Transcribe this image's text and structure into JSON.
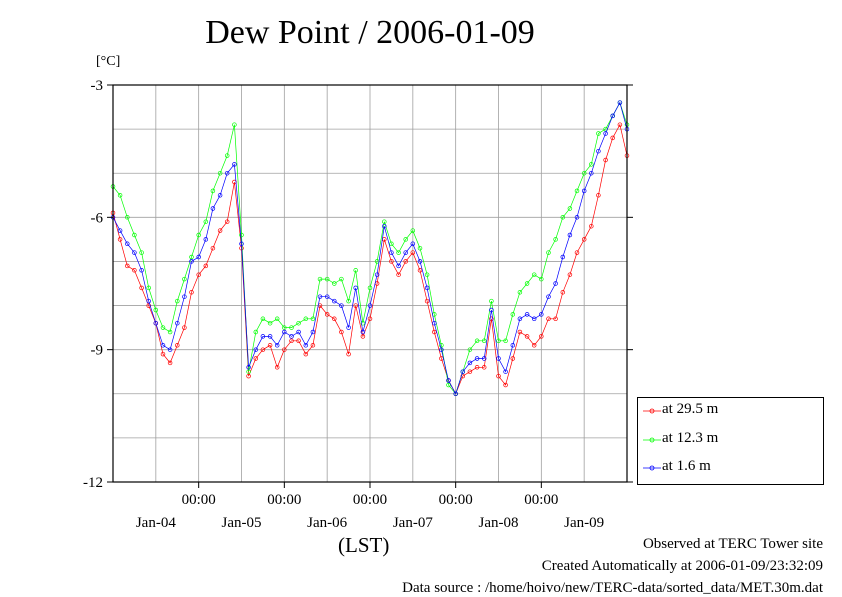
{
  "chart_data": {
    "type": "line",
    "title": "Dew Point / 2006-01-09",
    "ylabel": "[°C]",
    "xlabel": "(LST)",
    "ylim": [
      -12,
      -3
    ],
    "yticks": [
      -3,
      -6,
      -9,
      -12
    ],
    "y_minor_grid": [
      -4,
      -5,
      -7,
      -8,
      -10,
      -11
    ],
    "xlim": [
      0,
      72
    ],
    "xticks": [
      {
        "x": 12,
        "top": "00:00",
        "bottom": "Jan-04"
      },
      {
        "x": 24,
        "top": "00:00",
        "bottom": "Jan-05"
      },
      {
        "x": 36,
        "top": "00:00",
        "bottom": "Jan-06"
      },
      {
        "x": 48,
        "top": "00:00",
        "bottom": "Jan-07"
      },
      {
        "x": 60,
        "top": "00:00",
        "bottom": "Jan-08"
      },
      {
        "x": 72,
        "top": "",
        "bottom": "Jan-09"
      }
    ],
    "x_minor_grid": [
      0,
      6,
      18,
      30,
      42,
      54,
      66
    ],
    "grid": true,
    "legend": "bottom-right",
    "series": [
      {
        "name": "at 29.5 m",
        "color": "#ff0000",
        "values": [
          [
            0.0,
            -5.9
          ],
          [
            1.0,
            -6.5
          ],
          [
            2.0,
            -7.1
          ],
          [
            3.0,
            -7.2
          ],
          [
            4.0,
            -7.6
          ],
          [
            5.0,
            -8.0
          ],
          [
            6.0,
            -8.4
          ],
          [
            7.0,
            -9.1
          ],
          [
            8.0,
            -9.3
          ],
          [
            9.0,
            -8.9
          ],
          [
            10.0,
            -8.5
          ],
          [
            11.0,
            -7.7
          ],
          [
            12.0,
            -7.3
          ],
          [
            13.0,
            -7.1
          ],
          [
            14.0,
            -6.7
          ],
          [
            15.0,
            -6.3
          ],
          [
            16.0,
            -6.1
          ],
          [
            17.0,
            -5.2
          ],
          [
            18.0,
            -6.7
          ],
          [
            19.0,
            -9.6
          ],
          [
            20.0,
            -9.2
          ],
          [
            21.0,
            -9.0
          ],
          [
            22.0,
            -8.9
          ],
          [
            23.0,
            -9.4
          ],
          [
            24.0,
            -9.0
          ],
          [
            25.0,
            -8.8
          ],
          [
            26.0,
            -8.8
          ],
          [
            27.0,
            -9.1
          ],
          [
            28.0,
            -8.9
          ],
          [
            29.0,
            -8.0
          ],
          [
            30.0,
            -8.2
          ],
          [
            31.0,
            -8.3
          ],
          [
            32.0,
            -8.6
          ],
          [
            33.0,
            -9.1
          ],
          [
            34.0,
            -8.0
          ],
          [
            35.0,
            -8.7
          ],
          [
            36.0,
            -8.3
          ],
          [
            37.0,
            -7.5
          ],
          [
            38.0,
            -6.5
          ],
          [
            39.0,
            -7.0
          ],
          [
            40.0,
            -7.3
          ],
          [
            41.0,
            -7.0
          ],
          [
            42.0,
            -6.8
          ],
          [
            43.0,
            -7.2
          ],
          [
            44.0,
            -7.9
          ],
          [
            45.0,
            -8.6
          ],
          [
            46.0,
            -9.2
          ],
          [
            47.0,
            -9.7
          ],
          [
            48.0,
            -10.0
          ],
          [
            49.0,
            -9.6
          ],
          [
            50.0,
            -9.5
          ],
          [
            51.0,
            -9.4
          ],
          [
            52.0,
            -9.4
          ],
          [
            53.0,
            -8.3
          ],
          [
            54.0,
            -9.6
          ],
          [
            55.0,
            -9.8
          ],
          [
            56.0,
            -9.2
          ],
          [
            57.0,
            -8.6
          ],
          [
            58.0,
            -8.7
          ],
          [
            59.0,
            -8.9
          ],
          [
            60.0,
            -8.7
          ],
          [
            61.0,
            -8.3
          ],
          [
            62.0,
            -8.3
          ],
          [
            63.0,
            -7.7
          ],
          [
            64.0,
            -7.3
          ],
          [
            65.0,
            -6.8
          ],
          [
            66.0,
            -6.5
          ],
          [
            67.0,
            -6.2
          ],
          [
            68.0,
            -5.5
          ],
          [
            69.0,
            -4.7
          ],
          [
            70.0,
            -4.2
          ],
          [
            71.0,
            -3.9
          ],
          [
            72.0,
            -4.6
          ]
        ]
      },
      {
        "name": "at 12.3 m",
        "color": "#00ff00",
        "values": [
          [
            0.0,
            -5.3
          ],
          [
            1.0,
            -5.5
          ],
          [
            2.0,
            -6.0
          ],
          [
            3.0,
            -6.4
          ],
          [
            4.0,
            -6.8
          ],
          [
            5.0,
            -7.6
          ],
          [
            6.0,
            -8.1
          ],
          [
            7.0,
            -8.5
          ],
          [
            8.0,
            -8.6
          ],
          [
            9.0,
            -7.9
          ],
          [
            10.0,
            -7.4
          ],
          [
            11.0,
            -6.9
          ],
          [
            12.0,
            -6.4
          ],
          [
            13.0,
            -6.1
          ],
          [
            14.0,
            -5.4
          ],
          [
            15.0,
            -5.0
          ],
          [
            16.0,
            -4.6
          ],
          [
            17.0,
            -3.9
          ],
          [
            18.0,
            -6.4
          ],
          [
            19.0,
            -9.5
          ],
          [
            20.0,
            -8.6
          ],
          [
            21.0,
            -8.3
          ],
          [
            22.0,
            -8.4
          ],
          [
            23.0,
            -8.3
          ],
          [
            24.0,
            -8.5
          ],
          [
            25.0,
            -8.5
          ],
          [
            26.0,
            -8.4
          ],
          [
            27.0,
            -8.3
          ],
          [
            28.0,
            -8.3
          ],
          [
            29.0,
            -7.4
          ],
          [
            30.0,
            -7.4
          ],
          [
            31.0,
            -7.5
          ],
          [
            32.0,
            -7.4
          ],
          [
            33.0,
            -7.9
          ],
          [
            34.0,
            -7.2
          ],
          [
            35.0,
            -8.4
          ],
          [
            36.0,
            -7.6
          ],
          [
            37.0,
            -7.0
          ],
          [
            38.0,
            -6.1
          ],
          [
            39.0,
            -6.6
          ],
          [
            40.0,
            -6.8
          ],
          [
            41.0,
            -6.5
          ],
          [
            42.0,
            -6.3
          ],
          [
            43.0,
            -6.7
          ],
          [
            44.0,
            -7.3
          ],
          [
            45.0,
            -8.2
          ],
          [
            46.0,
            -8.9
          ],
          [
            47.0,
            -9.8
          ],
          [
            48.0,
            -10.0
          ],
          [
            49.0,
            -9.5
          ],
          [
            50.0,
            -9.0
          ],
          [
            51.0,
            -8.8
          ],
          [
            52.0,
            -8.8
          ],
          [
            53.0,
            -7.9
          ],
          [
            54.0,
            -8.8
          ],
          [
            55.0,
            -8.8
          ],
          [
            56.0,
            -8.2
          ],
          [
            57.0,
            -7.7
          ],
          [
            58.0,
            -7.5
          ],
          [
            59.0,
            -7.3
          ],
          [
            60.0,
            -7.4
          ],
          [
            61.0,
            -6.8
          ],
          [
            62.0,
            -6.5
          ],
          [
            63.0,
            -6.0
          ],
          [
            64.0,
            -5.8
          ],
          [
            65.0,
            -5.4
          ],
          [
            66.0,
            -5.0
          ],
          [
            67.0,
            -4.8
          ],
          [
            68.0,
            -4.1
          ],
          [
            69.0,
            -4.0
          ],
          [
            70.0,
            -3.7
          ],
          [
            71.0,
            -3.4
          ],
          [
            72.0,
            -3.9
          ]
        ]
      },
      {
        "name": "at 1.6 m",
        "color": "#0000ff",
        "values": [
          [
            0.0,
            -6.0
          ],
          [
            1.0,
            -6.3
          ],
          [
            2.0,
            -6.6
          ],
          [
            3.0,
            -6.8
          ],
          [
            4.0,
            -7.2
          ],
          [
            5.0,
            -7.9
          ],
          [
            6.0,
            -8.4
          ],
          [
            7.0,
            -8.9
          ],
          [
            8.0,
            -9.0
          ],
          [
            9.0,
            -8.4
          ],
          [
            10.0,
            -7.8
          ],
          [
            11.0,
            -7.0
          ],
          [
            12.0,
            -6.9
          ],
          [
            13.0,
            -6.5
          ],
          [
            14.0,
            -5.8
          ],
          [
            15.0,
            -5.5
          ],
          [
            16.0,
            -5.0
          ],
          [
            17.0,
            -4.8
          ],
          [
            18.0,
            -6.6
          ],
          [
            19.0,
            -9.4
          ],
          [
            20.0,
            -9.0
          ],
          [
            21.0,
            -8.7
          ],
          [
            22.0,
            -8.7
          ],
          [
            23.0,
            -8.9
          ],
          [
            24.0,
            -8.6
          ],
          [
            25.0,
            -8.7
          ],
          [
            26.0,
            -8.6
          ],
          [
            27.0,
            -8.9
          ],
          [
            28.0,
            -8.6
          ],
          [
            29.0,
            -7.8
          ],
          [
            30.0,
            -7.8
          ],
          [
            31.0,
            -7.9
          ],
          [
            32.0,
            -8.0
          ],
          [
            33.0,
            -8.5
          ],
          [
            34.0,
            -7.6
          ],
          [
            35.0,
            -8.6
          ],
          [
            36.0,
            -8.0
          ],
          [
            37.0,
            -7.3
          ],
          [
            38.0,
            -6.2
          ],
          [
            39.0,
            -6.8
          ],
          [
            40.0,
            -7.1
          ],
          [
            41.0,
            -6.8
          ],
          [
            42.0,
            -6.6
          ],
          [
            43.0,
            -7.0
          ],
          [
            44.0,
            -7.6
          ],
          [
            45.0,
            -8.4
          ],
          [
            46.0,
            -9.0
          ],
          [
            47.0,
            -9.7
          ],
          [
            48.0,
            -10.0
          ],
          [
            49.0,
            -9.5
          ],
          [
            50.0,
            -9.3
          ],
          [
            51.0,
            -9.2
          ],
          [
            52.0,
            -9.2
          ],
          [
            53.0,
            -8.1
          ],
          [
            54.0,
            -9.2
          ],
          [
            55.0,
            -9.5
          ],
          [
            56.0,
            -8.9
          ],
          [
            57.0,
            -8.3
          ],
          [
            58.0,
            -8.2
          ],
          [
            59.0,
            -8.3
          ],
          [
            60.0,
            -8.2
          ],
          [
            61.0,
            -7.8
          ],
          [
            62.0,
            -7.5
          ],
          [
            63.0,
            -6.9
          ],
          [
            64.0,
            -6.4
          ],
          [
            65.0,
            -6.0
          ],
          [
            66.0,
            -5.4
          ],
          [
            67.0,
            -5.0
          ],
          [
            68.0,
            -4.5
          ],
          [
            69.0,
            -4.1
          ],
          [
            70.0,
            -3.7
          ],
          [
            71.0,
            -3.4
          ],
          [
            72.0,
            -4.0
          ]
        ]
      }
    ]
  },
  "footer": {
    "site": "Observed at TERC Tower site",
    "created": "Created Automatically at 2006-01-09/23:32:09",
    "source": "Data source : /home/hoivo/new/TERC-data/sorted_data/MET.30m.dat"
  }
}
